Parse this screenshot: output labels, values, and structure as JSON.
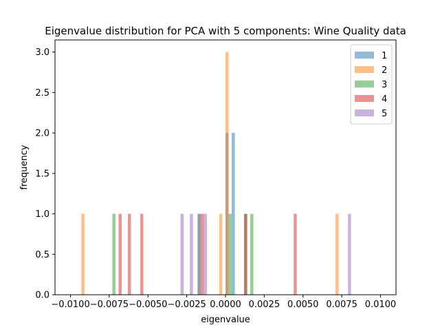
{
  "chart_data": {
    "type": "bar",
    "subtype": "overlaid-histogram",
    "title": "Eigenvalue distribution for PCA with 5 components: Wine Quality data",
    "xlabel": "eigenvalue",
    "ylabel": "frequency",
    "xlim": [
      -0.011,
      0.011
    ],
    "ylim": [
      0,
      3.15
    ],
    "bin_width": 0.0002,
    "grid": false,
    "legend_position": "top-right",
    "xticks": [
      -0.01,
      -0.0075,
      -0.005,
      -0.0025,
      0.0,
      0.0025,
      0.005,
      0.0075,
      0.01
    ],
    "xtick_labels": [
      "−0.0100",
      "−0.0075",
      "−0.0050",
      "−0.0025",
      "0.0000",
      "0.0025",
      "0.0050",
      "0.0075",
      "0.0100"
    ],
    "yticks": [
      0.0,
      0.5,
      1.0,
      1.5,
      2.0,
      2.5,
      3.0
    ],
    "ytick_labels": [
      "0.0",
      "0.5",
      "1.0",
      "1.5",
      "2.0",
      "2.5",
      "3.0"
    ],
    "series": [
      {
        "name": "1",
        "color": "#1f77b4",
        "bins": [
          {
            "x": 0.0,
            "count": 2
          },
          {
            "x": 0.0004,
            "count": 2
          }
        ]
      },
      {
        "name": "2",
        "color": "#ff7f0e",
        "bins": [
          {
            "x": -0.0093,
            "count": 1
          },
          {
            "x": -0.0004,
            "count": 1
          },
          {
            "x": 0.0,
            "count": 3
          },
          {
            "x": 0.0071,
            "count": 1
          }
        ]
      },
      {
        "name": "3",
        "color": "#2ca02c",
        "bins": [
          {
            "x": -0.0073,
            "count": 1
          },
          {
            "x": -0.0018,
            "count": 1
          },
          {
            "x": 0.0002,
            "count": 1
          },
          {
            "x": 0.0012,
            "count": 1
          },
          {
            "x": 0.0016,
            "count": 1
          }
        ]
      },
      {
        "name": "4",
        "color": "#d62728",
        "bins": [
          {
            "x": -0.0069,
            "count": 1
          },
          {
            "x": -0.0063,
            "count": 1
          },
          {
            "x": -0.0055,
            "count": 1
          },
          {
            "x": -0.0016,
            "count": 1
          },
          {
            "x": 0.0012,
            "count": 1
          },
          {
            "x": 0.0044,
            "count": 1
          }
        ]
      },
      {
        "name": "5",
        "color": "#9467bd",
        "bins": [
          {
            "x": -0.0029,
            "count": 1
          },
          {
            "x": -0.0023,
            "count": 1
          },
          {
            "x": -0.0018,
            "count": 1
          },
          {
            "x": -0.0014,
            "count": 1
          },
          {
            "x": 0.0079,
            "count": 1
          }
        ]
      }
    ]
  }
}
